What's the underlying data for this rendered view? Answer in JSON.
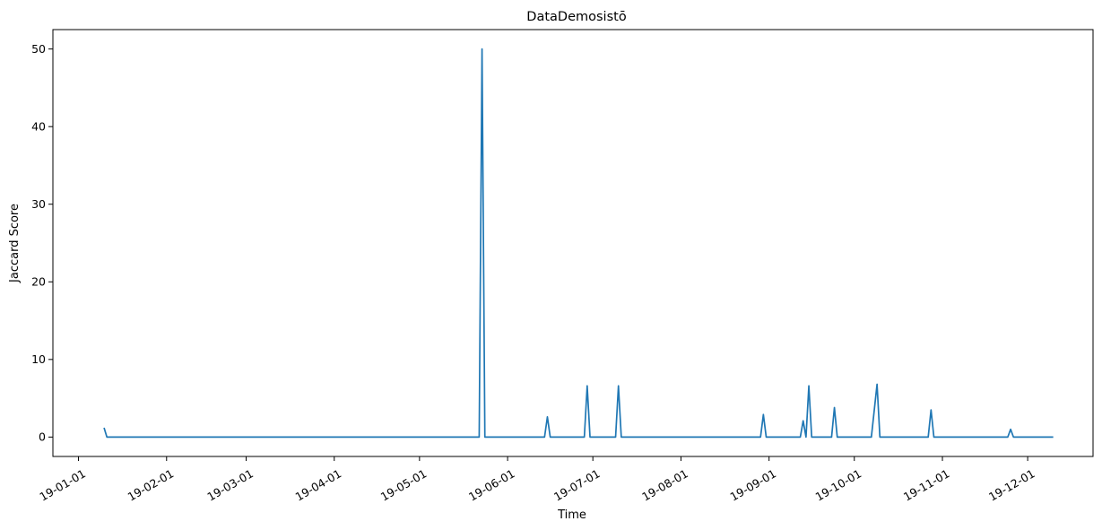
{
  "chart_data": {
    "type": "line",
    "title": "DataDemosistō",
    "xlabel": "Time",
    "ylabel": "Jaccard Score",
    "grid": false,
    "legend": "none",
    "color": "#1f77b4",
    "xlim": [
      "2018-12-23",
      "2019-12-24"
    ],
    "ylim": [
      -2.5,
      52.5
    ],
    "xticks": [
      {
        "date": "2019-01-01",
        "label": "19-01-01"
      },
      {
        "date": "2019-02-01",
        "label": "19-02-01"
      },
      {
        "date": "2019-03-01",
        "label": "19-03-01"
      },
      {
        "date": "2019-04-01",
        "label": "19-04-01"
      },
      {
        "date": "2019-05-01",
        "label": "19-05-01"
      },
      {
        "date": "2019-06-01",
        "label": "19-06-01"
      },
      {
        "date": "2019-07-01",
        "label": "19-07-01"
      },
      {
        "date": "2019-08-01",
        "label": "19-08-01"
      },
      {
        "date": "2019-09-01",
        "label": "19-09-01"
      },
      {
        "date": "2019-10-01",
        "label": "19-10-01"
      },
      {
        "date": "2019-11-01",
        "label": "19-11-01"
      },
      {
        "date": "2019-12-01",
        "label": "19-12-01"
      }
    ],
    "yticks": [
      {
        "value": 0,
        "label": "0"
      },
      {
        "value": 10,
        "label": "10"
      },
      {
        "value": 20,
        "label": "20"
      },
      {
        "value": 30,
        "label": "30"
      },
      {
        "value": 40,
        "label": "40"
      },
      {
        "value": 50,
        "label": "50"
      }
    ],
    "series": [
      {
        "points": [
          [
            "2019-01-10",
            1.2
          ],
          [
            "2019-01-11",
            0
          ],
          [
            "2019-05-22",
            0
          ],
          [
            "2019-05-23",
            50
          ],
          [
            "2019-05-24",
            0
          ],
          [
            "2019-06-14",
            0
          ],
          [
            "2019-06-15",
            2.6
          ],
          [
            "2019-06-16",
            0
          ],
          [
            "2019-06-28",
            0
          ],
          [
            "2019-06-29",
            6.6
          ],
          [
            "2019-06-30",
            0
          ],
          [
            "2019-07-09",
            0
          ],
          [
            "2019-07-10",
            6.6
          ],
          [
            "2019-07-11",
            0
          ],
          [
            "2019-08-29",
            0
          ],
          [
            "2019-08-30",
            2.9
          ],
          [
            "2019-08-31",
            0
          ],
          [
            "2019-09-12",
            0
          ],
          [
            "2019-09-13",
            2.1
          ],
          [
            "2019-09-14",
            0
          ],
          [
            "2019-09-15",
            6.6
          ],
          [
            "2019-09-16",
            0
          ],
          [
            "2019-09-23",
            0
          ],
          [
            "2019-09-24",
            3.8
          ],
          [
            "2019-09-25",
            0
          ],
          [
            "2019-10-07",
            0
          ],
          [
            "2019-10-09",
            6.8
          ],
          [
            "2019-10-10",
            0
          ],
          [
            "2019-10-27",
            0
          ],
          [
            "2019-10-28",
            3.5
          ],
          [
            "2019-10-29",
            0
          ],
          [
            "2019-11-24",
            0
          ],
          [
            "2019-11-25",
            1.0
          ],
          [
            "2019-11-26",
            0
          ],
          [
            "2019-12-10",
            0
          ]
        ]
      }
    ]
  }
}
